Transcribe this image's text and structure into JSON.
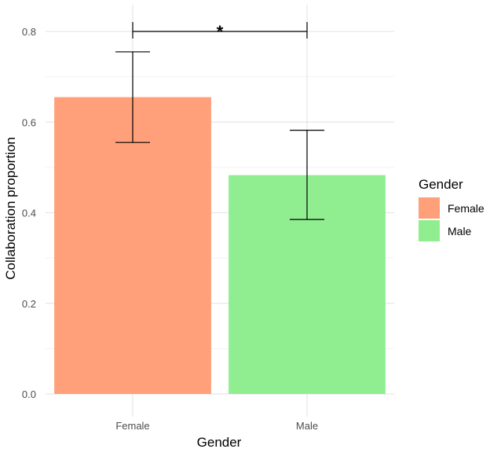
{
  "chart_data": {
    "type": "bar",
    "categories": [
      "Female",
      "Male"
    ],
    "values": [
      0.655,
      0.483
    ],
    "error_low": [
      0.555,
      0.385
    ],
    "error_high": [
      0.755,
      0.582
    ],
    "colors": [
      "#FFA07A",
      "#90EE90"
    ],
    "xlabel": "Gender",
    "ylabel": "Collaboration proportion",
    "ylim": [
      0,
      0.8
    ],
    "yticks": [
      "0.0",
      "0.2",
      "0.4",
      "0.6",
      "0.8"
    ],
    "ytick_values": [
      0,
      0.2,
      0.4,
      0.6,
      0.8
    ],
    "grid": true,
    "legend": {
      "title": "Gender",
      "position": "right",
      "entries": [
        "Female",
        "Male"
      ]
    },
    "annotation": {
      "type": "significance-bracket",
      "label": "*",
      "between": [
        "Female",
        "Male"
      ],
      "y": 0.8
    }
  }
}
